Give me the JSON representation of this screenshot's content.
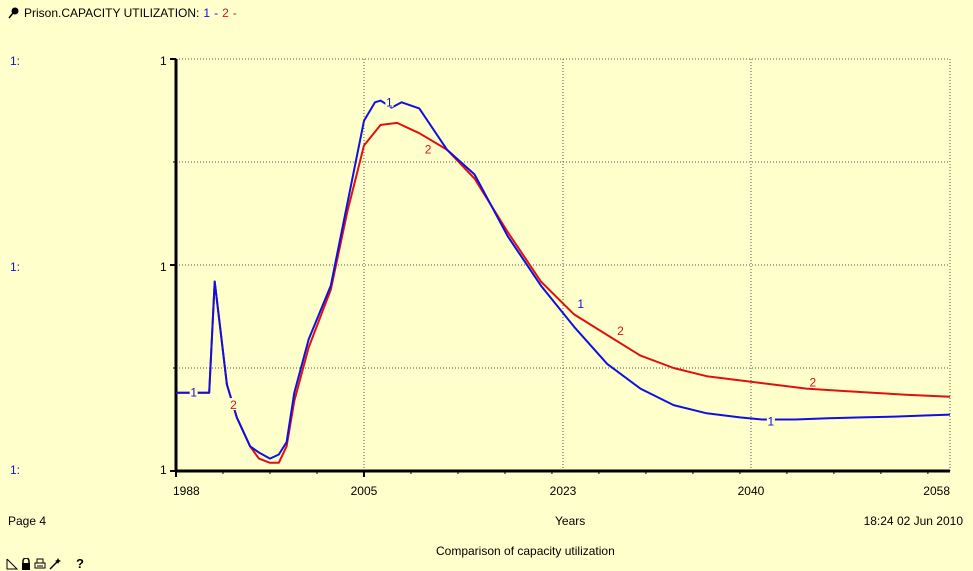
{
  "header": {
    "icon": "pin-icon",
    "title": "Prison.CAPACITY UTILIZATION:",
    "series1_marker": "1",
    "sep": "-",
    "series2_marker": "2",
    "trail": "-"
  },
  "scale_labels": [
    "1:",
    "1:",
    "1:"
  ],
  "y_ticks": [
    "1",
    "1",
    "1"
  ],
  "chart_data": {
    "type": "line",
    "title": "Comparison of capacity utilization",
    "xlabel": "Years",
    "ylabel": "",
    "xlim": [
      1988,
      2058
    ],
    "ylim": [
      0,
      1
    ],
    "x_ticks": [
      "1988",
      "2005",
      "2023",
      "2040",
      "2058"
    ],
    "grid": true,
    "series": [
      {
        "name": "1",
        "color": "#1010e0",
        "x": [
          1988,
          1991,
          1991.5,
          1992.6,
          1993.5,
          1994.7,
          1995.5,
          1996.5,
          1997.3,
          1998,
          1998.7,
          2000,
          2002,
          2003.5,
          2005,
          2006,
          2006.5,
          2007.5,
          2008.4,
          2010,
          2012.5,
          2015,
          2018,
          2021,
          2024,
          2027,
          2030,
          2033,
          2036,
          2039,
          2041,
          2044,
          2047,
          2050,
          2053,
          2056,
          2058
        ],
        "y": [
          0.19,
          0.19,
          0.46,
          0.21,
          0.13,
          0.06,
          0.045,
          0.03,
          0.04,
          0.07,
          0.19,
          0.32,
          0.45,
          0.65,
          0.85,
          0.895,
          0.899,
          0.882,
          0.895,
          0.88,
          0.78,
          0.72,
          0.57,
          0.45,
          0.35,
          0.26,
          0.2,
          0.16,
          0.14,
          0.13,
          0.125,
          0.125,
          0.128,
          0.13,
          0.132,
          0.135,
          0.137
        ]
      },
      {
        "name": "2",
        "color": "#e01010",
        "x": [
          1988,
          1991,
          1991.5,
          1992.6,
          1993.5,
          1994.7,
          1995.5,
          1996.5,
          1997.3,
          1998,
          1998.7,
          2000,
          2002,
          2003.5,
          2005,
          2006.5,
          2008,
          2010,
          2012.5,
          2015,
          2018,
          2021,
          2024,
          2027,
          2030,
          2033,
          2036,
          2039,
          2042,
          2045,
          2048,
          2051,
          2054,
          2058
        ],
        "y": [
          0.19,
          0.19,
          0.46,
          0.21,
          0.13,
          0.06,
          0.03,
          0.02,
          0.02,
          0.06,
          0.17,
          0.3,
          0.44,
          0.63,
          0.79,
          0.84,
          0.845,
          0.82,
          0.78,
          0.71,
          0.58,
          0.46,
          0.38,
          0.33,
          0.28,
          0.25,
          0.23,
          0.22,
          0.21,
          0.2,
          0.195,
          0.19,
          0.185,
          0.18
        ]
      }
    ],
    "markers": [
      {
        "series": "1",
        "label": "1",
        "x": 1989.6,
        "y": 0.19
      },
      {
        "series": "1",
        "label": "1",
        "x": 2007.3,
        "y": 0.895
      },
      {
        "series": "1",
        "label": "1",
        "x": 2024.6,
        "y": 0.405
      },
      {
        "series": "1",
        "label": "1",
        "x": 2041.8,
        "y": 0.12
      },
      {
        "series": "2",
        "label": "2",
        "x": 1993.2,
        "y": 0.16
      },
      {
        "series": "2",
        "label": "2",
        "x": 2010.8,
        "y": 0.78
      },
      {
        "series": "2",
        "label": "2",
        "x": 2028.2,
        "y": 0.34
      },
      {
        "series": "2",
        "label": "2",
        "x": 2045.6,
        "y": 0.215
      }
    ]
  },
  "footer": {
    "page": "Page 4",
    "x_axis_label": "Years",
    "timestamp": "18:24   02 Jun 2010",
    "subtitle": "Comparison of capacity utilization"
  },
  "toolbar": {
    "icons": [
      "corner-icon",
      "lock-icon",
      "print-icon",
      "wand-icon"
    ],
    "help": "?"
  }
}
